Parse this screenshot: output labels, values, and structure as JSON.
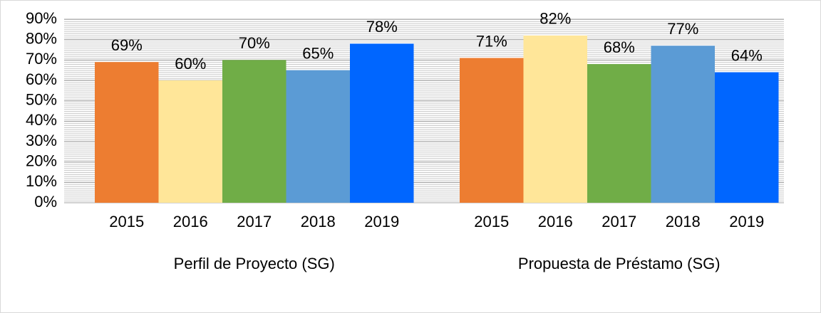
{
  "chart_data": {
    "type": "bar",
    "categories": [
      "Perfil de Proyecto (SG)",
      "Propuesta de Préstamo (SG)"
    ],
    "series": [
      {
        "name": "2015",
        "color": "#ed7d31",
        "values": [
          69,
          71
        ],
        "value_labels": [
          "69%",
          "71%"
        ]
      },
      {
        "name": "2016",
        "color": "#ffe699",
        "values": [
          60,
          82
        ],
        "value_labels": [
          "60%",
          "82%"
        ]
      },
      {
        "name": "2017",
        "color": "#70ad47",
        "values": [
          70,
          68
        ],
        "value_labels": [
          "70%",
          "68%"
        ]
      },
      {
        "name": "2018",
        "color": "#5b9bd5",
        "values": [
          65,
          77
        ],
        "value_labels": [
          "65%",
          "77%"
        ]
      },
      {
        "name": "2019",
        "color": "#0066ff",
        "values": [
          78,
          64
        ],
        "value_labels": [
          "78%",
          "64%"
        ]
      }
    ],
    "ylim": [
      0,
      90
    ],
    "yticks": [
      {
        "value": 0,
        "label": "0%"
      },
      {
        "value": 10,
        "label": "10%"
      },
      {
        "value": 20,
        "label": "20%"
      },
      {
        "value": 30,
        "label": "30%"
      },
      {
        "value": 40,
        "label": "40%"
      },
      {
        "value": 50,
        "label": "50%"
      },
      {
        "value": 60,
        "label": "60%"
      },
      {
        "value": 70,
        "label": "70%"
      },
      {
        "value": 80,
        "label": "80%"
      },
      {
        "value": 90,
        "label": "90%"
      }
    ],
    "grid": true
  }
}
